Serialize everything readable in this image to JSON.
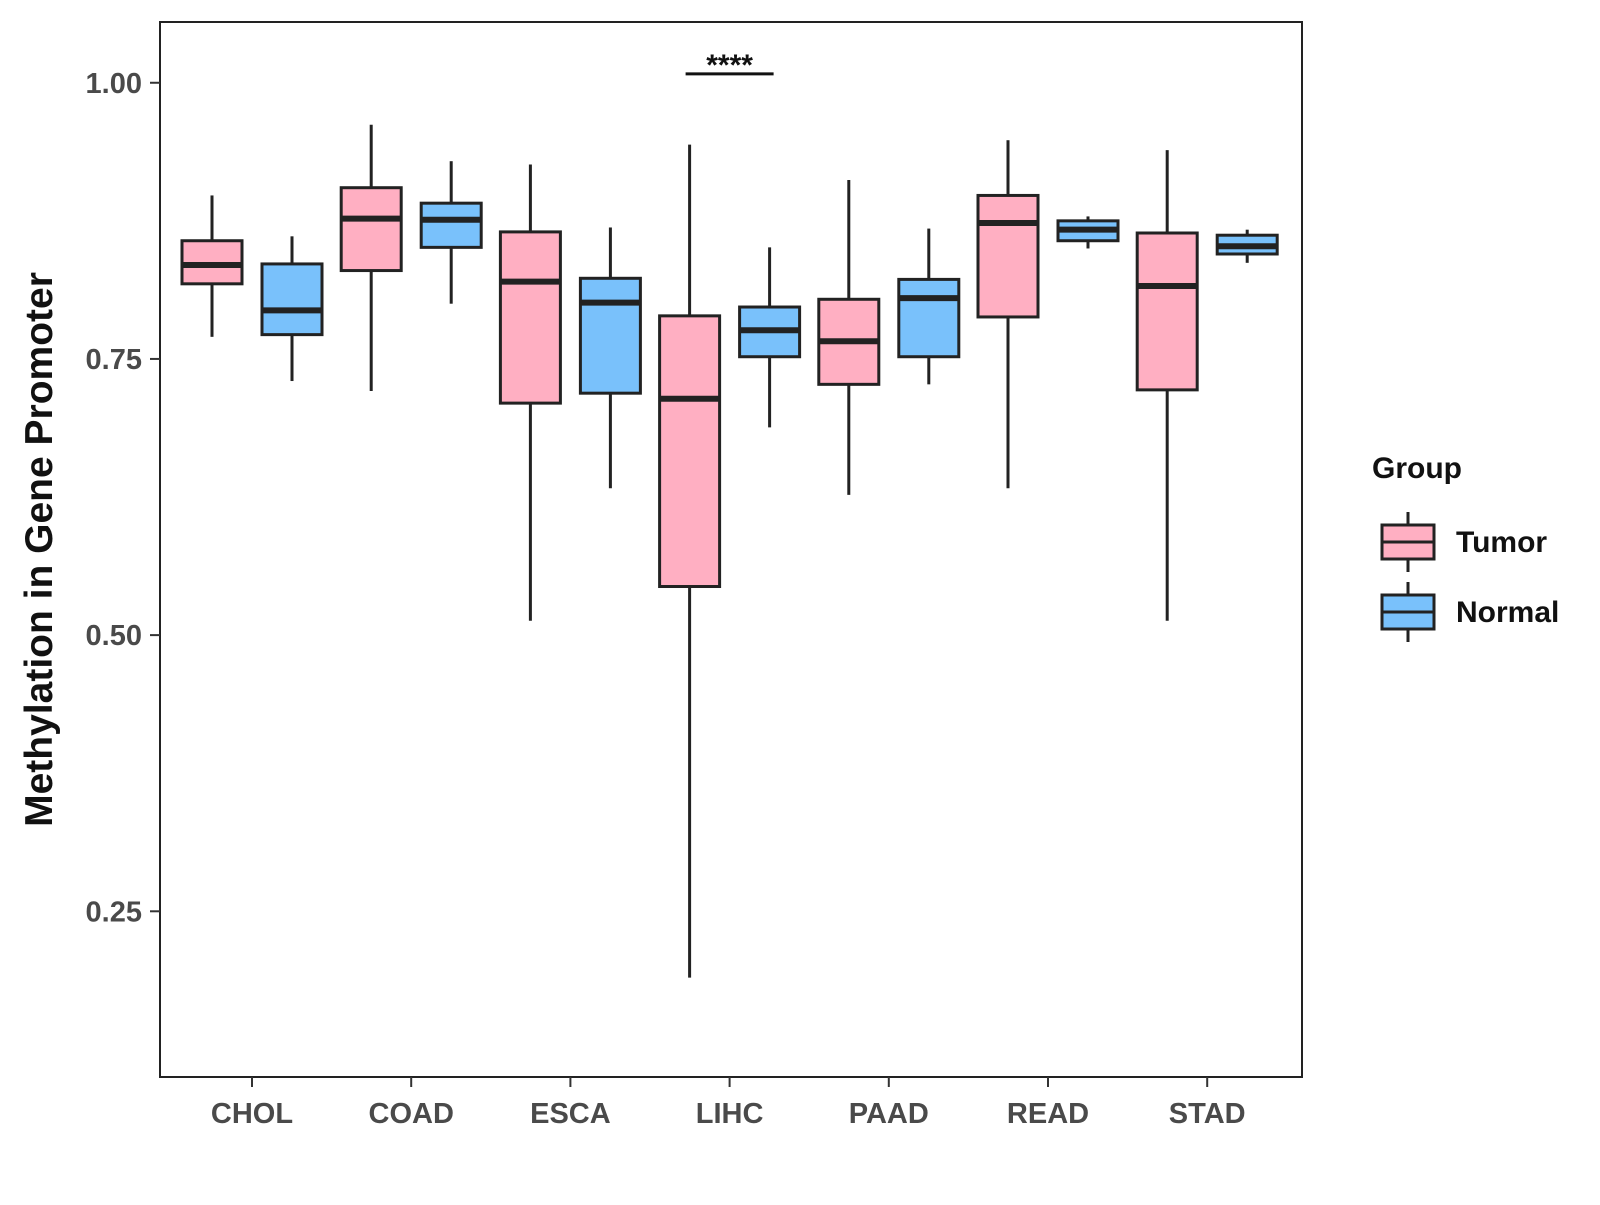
{
  "chart_data": {
    "type": "boxplot",
    "title": "",
    "xlabel": "",
    "ylabel": "Methylation in Gene Promoter",
    "ylim": [
      0.1,
      1.055
    ],
    "yticks": [
      0.25,
      0.5,
      0.75,
      1.0
    ],
    "ytick_labels": [
      "0.25",
      "0.50",
      "0.75",
      "1.00"
    ],
    "grid": false,
    "categories": [
      "CHOL",
      "COAD",
      "ESCA",
      "LIHC",
      "PAAD",
      "READ",
      "STAD"
    ],
    "legend": {
      "title": "Group",
      "position": "right",
      "entries": [
        {
          "name": "Tumor",
          "color": "#ffafc2"
        },
        {
          "name": "Normal",
          "color": "#79c1fb"
        }
      ]
    },
    "series": [
      {
        "name": "Tumor",
        "color": "#ffafc2",
        "boxes": [
          {
            "whisker_low": 0.77,
            "q1": 0.818,
            "median": 0.835,
            "q3": 0.857,
            "whisker_high": 0.898
          },
          {
            "whisker_low": 0.721,
            "q1": 0.83,
            "median": 0.877,
            "q3": 0.905,
            "whisker_high": 0.962
          },
          {
            "whisker_low": 0.513,
            "q1": 0.71,
            "median": 0.82,
            "q3": 0.865,
            "whisker_high": 0.926
          },
          {
            "whisker_low": 0.19,
            "q1": 0.544,
            "median": 0.714,
            "q3": 0.789,
            "whisker_high": 0.944
          },
          {
            "whisker_low": 0.627,
            "q1": 0.727,
            "median": 0.766,
            "q3": 0.804,
            "whisker_high": 0.912
          },
          {
            "whisker_low": 0.633,
            "q1": 0.788,
            "median": 0.873,
            "q3": 0.898,
            "whisker_high": 0.948
          },
          {
            "whisker_low": 0.513,
            "q1": 0.722,
            "median": 0.816,
            "q3": 0.864,
            "whisker_high": 0.939
          }
        ]
      },
      {
        "name": "Normal",
        "color": "#79c1fb",
        "boxes": [
          {
            "whisker_low": 0.73,
            "q1": 0.772,
            "median": 0.794,
            "q3": 0.836,
            "whisker_high": 0.861
          },
          {
            "whisker_low": 0.8,
            "q1": 0.851,
            "median": 0.876,
            "q3": 0.891,
            "whisker_high": 0.929
          },
          {
            "whisker_low": 0.633,
            "q1": 0.719,
            "median": 0.801,
            "q3": 0.823,
            "whisker_high": 0.869
          },
          {
            "whisker_low": 0.688,
            "q1": 0.752,
            "median": 0.776,
            "q3": 0.797,
            "whisker_high": 0.851
          },
          {
            "whisker_low": 0.727,
            "q1": 0.752,
            "median": 0.805,
            "q3": 0.822,
            "whisker_high": 0.868
          },
          {
            "whisker_low": 0.85,
            "q1": 0.857,
            "median": 0.867,
            "q3": 0.875,
            "whisker_high": 0.879
          },
          {
            "whisker_low": 0.837,
            "q1": 0.845,
            "median": 0.852,
            "q3": 0.862,
            "whisker_high": 0.867
          }
        ]
      }
    ],
    "annotations": [
      {
        "category": "LIHC",
        "label": "****",
        "y": 1.008
      }
    ]
  }
}
